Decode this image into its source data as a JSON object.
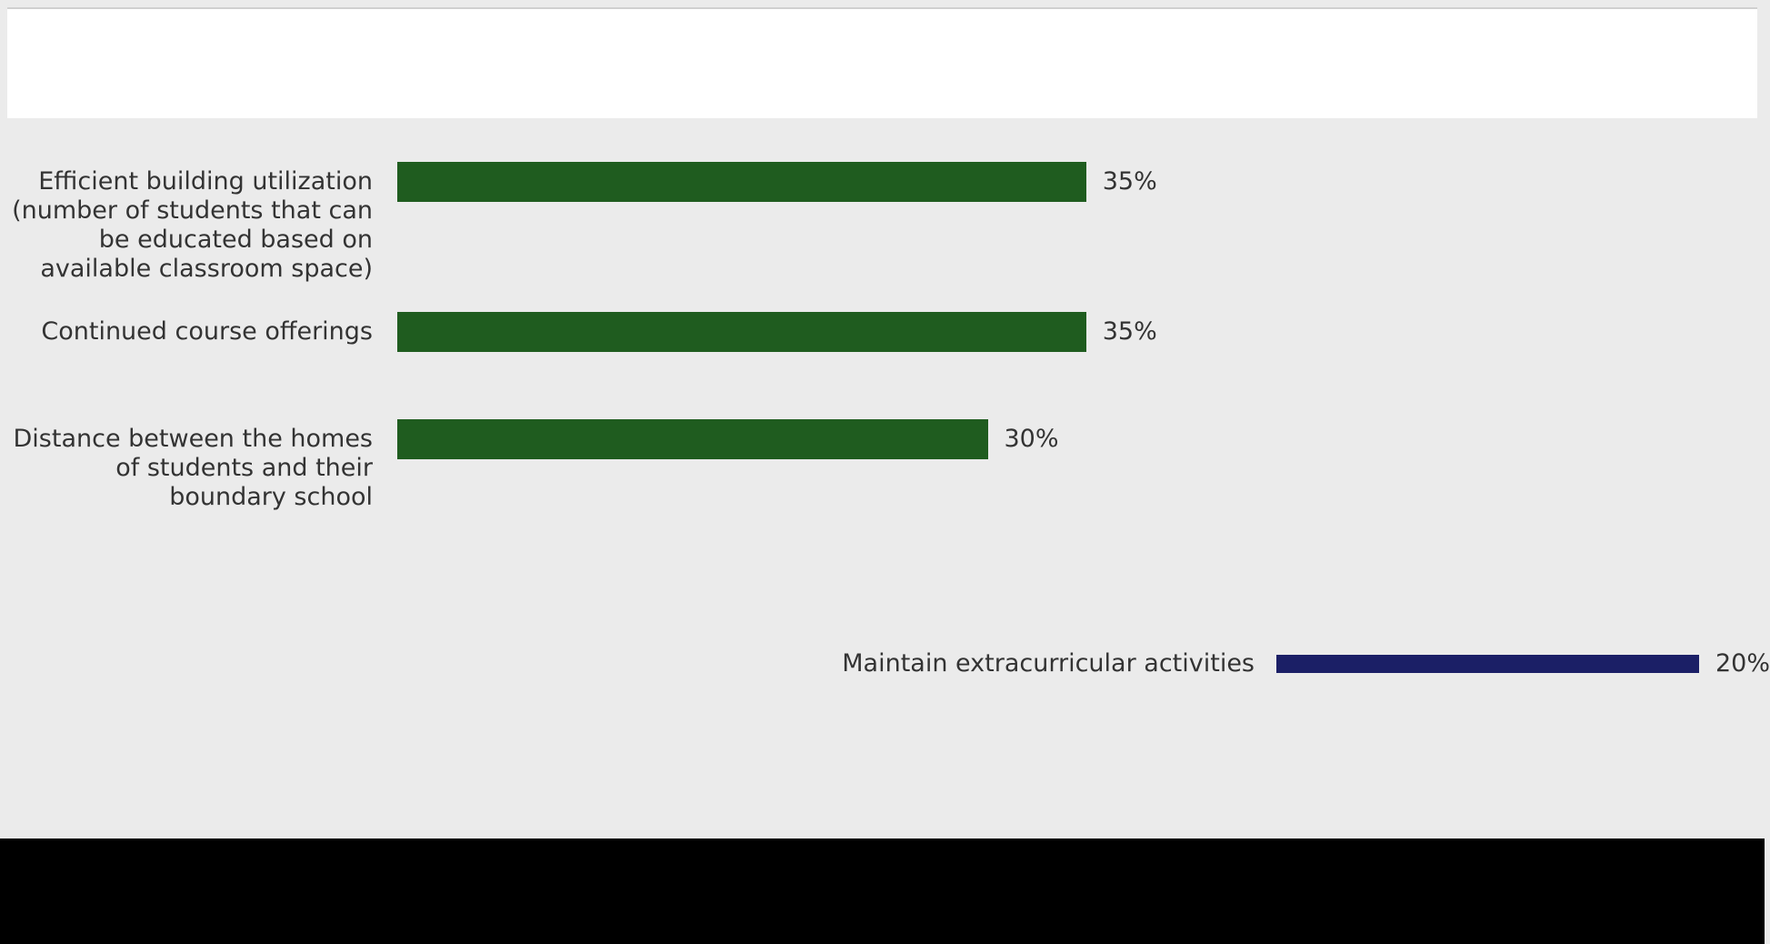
{
  "chart_data": [
    {
      "type": "bar",
      "orientation": "horizontal",
      "color": "#1f5c1f",
      "categories": [
        "Efficient building utilization (number of students that can be educated based on available classroom space)",
        "Continued course offerings",
        "Distance between the homes of students and their boundary school"
      ],
      "values": [
        35,
        35,
        30
      ],
      "value_labels": [
        "35%",
        "35%",
        "30%"
      ],
      "xlim": [
        0,
        40
      ]
    },
    {
      "type": "bar",
      "orientation": "horizontal",
      "color": "#1b1f66",
      "categories": [
        "Maintain extracurricular activities"
      ],
      "values": [
        20
      ],
      "value_labels": [
        "20%"
      ],
      "xlim": [
        0,
        40
      ]
    }
  ]
}
